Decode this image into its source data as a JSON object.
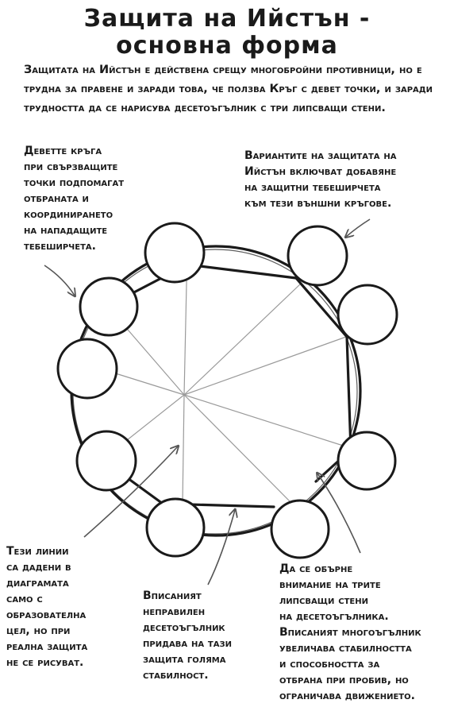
{
  "title": {
    "line1": "Защита на Ийстън -",
    "line2": "основна форма"
  },
  "intro": "Защитата на Ийстън е действена срещу многобройни противници, но е трудна за правене и заради това, че ползва Кръг с девет точки, и заради трудността да се нарисува десетоъгълник с три липсващи стени.",
  "notes": {
    "circles": "Деветте кръга\nпри свързващите\nточки подпомагат\nотбраната и\nкоординирането\nна нападащите\nтебеширчета.",
    "variants": "Вариантите на защитата на\nИйстън включват добавяне\nна защитни тебеширчета\nкъм тези външни кръгове.",
    "lines": "Тези линии\nса дадени в\nдиаграмата\nсамо с\nобразователна\nцел, но при\nреална защита\nне се рисуват.",
    "decagon": "Вписаният\nнеправилен\nдесетоъгълник\nпридава на тази\nзащита голяма\nстабилност.",
    "missing": "Да се обърне\nвнимание на трите\nлипсващи стени\nна десетоъгълника.\nВписаният многоъгълник\nувеличава стабилността\nи способността за\nотбрана при пробив, но\nограничава движението."
  },
  "colors": {
    "ink": "#1a1a1a",
    "guide": "#9a9a9a"
  }
}
